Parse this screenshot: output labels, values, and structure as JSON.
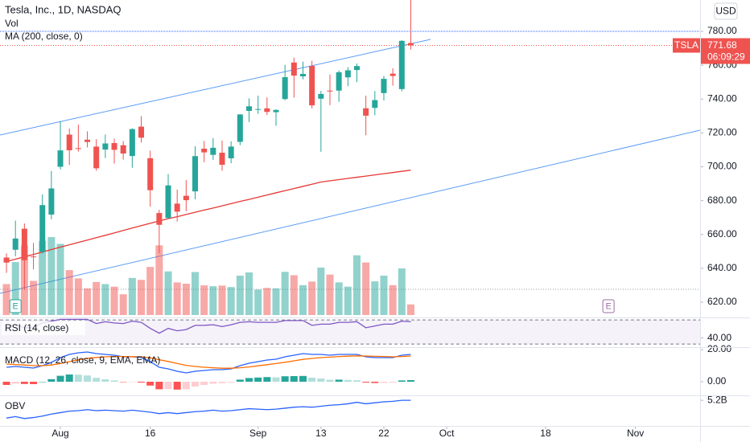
{
  "chart_data": [
    {
      "type": "candlestick",
      "title": "Tesla, Inc., 1D, NASDAQ",
      "currency": "USD",
      "x": [
        0,
        1,
        2,
        3,
        4,
        5,
        6,
        7,
        8,
        9,
        10,
        11,
        12,
        13,
        14,
        15,
        16,
        17,
        18,
        19,
        20,
        21,
        22,
        23,
        24,
        25,
        26,
        27,
        28,
        29,
        30,
        31,
        32,
        33,
        34,
        35,
        36,
        37,
        38,
        39,
        40,
        41,
        42,
        43,
        44,
        45
      ],
      "xlim": [
        -0.72,
        77.2
      ],
      "xticks": [
        {
          "value": 6,
          "label": "Aug"
        },
        16,
        {
          "value": 28,
          "label": "Sep"
        },
        {
          "value": 35,
          "label": "13"
        },
        {
          "value": 42,
          "label": "22"
        },
        {
          "value": 49,
          "label": "Oct"
        },
        {
          "value": 60,
          "label": "18"
        },
        {
          "value": 70,
          "label": "Nov"
        }
      ],
      "open": [
        646.36,
        650.97,
        663.4,
        647.0,
        649.79,
        671.76,
        700.0,
        719.0,
        711.0,
        716.0,
        711.9,
        710.17,
        713.99,
        712.71,
        706.34,
        723.71,
        705.07,
        672.66,
        669.75,
        678.21,
        682.85,
        685.44,
        710.68,
        707.03,
        708.31,
        705.0,
        714.72,
        733.0,
        734.08,
        734.5,
        732.25,
        740.0,
        761.58,
        753.41,
        759.6,
        740.21,
        745.0,
        745.0,
        752.83,
        757.15,
        734.56,
        734.79,
        743.53,
        755.0,
        745.89,
        773.12
      ],
      "high": [
        648.8,
        668.2,
        666.5,
        654.97,
        683.69,
        697.53,
        726.94,
        722.65,
        724.9,
        720.95,
        716.33,
        719.03,
        716.59,
        715.18,
        722.8,
        729.9,
        709.5,
        674.58,
        695.77,
        686.55,
        692.13,
        712.13,
        715.22,
        716.97,
        715.4,
        715.0,
        731.0,
        740.39,
        741.99,
        740.97,
        734.0,
        760.2,
        764.45,
        762.1,
        762.61,
        744.78,
        754.48,
        756.86,
        758.91,
        761.04,
        742.0,
        744.74,
        753.67,
        758.2,
        774.8,
        799.0
      ],
      "low": [
        637.3,
        647.11,
        627.24,
        639.4,
        648.8,
        669.0,
        698.4,
        701.01,
        708.93,
        711.41,
        697.63,
        705.13,
        701.88,
        704.21,
        699.4,
        714.34,
        676.4,
        648.84,
        669.35,
        667.59,
        673.7,
        680.75,
        702.64,
        704.0,
        697.62,
        702.1,
        712.73,
        726.44,
        731.27,
        730.54,
        724.2,
        739.26,
        740.77,
        751.63,
        734.52,
        708.85,
        736.4,
        738.36,
        747.61,
        750.0,
        718.62,
        730.44,
        739.12,
        747.92,
        744.56,
        769.31
      ],
      "close": [
        643.38,
        657.62,
        644.78,
        646.98,
        677.35,
        687.2,
        709.67,
        709.74,
        710.92,
        714.63,
        699.1,
        713.76,
        709.99,
        707.82,
        722.25,
        717.17,
        686.17,
        665.71,
        688.99,
        673.47,
        680.26,
        706.3,
        708.49,
        711.2,
        701.16,
        711.92,
        730.91,
        735.72,
        734.09,
        732.39,
        733.57,
        752.92,
        753.87,
        754.86,
        736.27,
        743.0,
        744.49,
        755.83,
        756.99,
        759.49,
        730.17,
        739.38,
        751.94,
        753.64,
        774.39,
        771.68
      ],
      "up_color": "#26a69a",
      "down_color": "#ef5350",
      "volume": {
        "name": "Vol",
        "values": [
          14.6,
          25.0,
          32.8,
          16.1,
          35.0,
          36.8,
          33.6,
          21.2,
          17.3,
          12.6,
          15.6,
          14.6,
          13.4,
          9.8,
          17.5,
          16.6,
          22.7,
          32.9,
          20.6,
          15.4,
          14.8,
          20.3,
          14.0,
          13.6,
          13.9,
          13.2,
          18.6,
          20.1,
          12.0,
          12.8,
          12.6,
          20.4,
          18.8,
          14.1,
          15.8,
          22.4,
          19.1,
          15.4,
          13.4,
          28.2,
          24.8,
          15.9,
          18.6,
          14.1,
          22.0,
          5.0
        ]
      },
      "series": [
        {
          "name": "MA (200, close, 0)",
          "color": "#e53935",
          "values": [
            644,
            645.4,
            646.8,
            648.2,
            649.6,
            651.1,
            652.5,
            653.9,
            655.3,
            656.7,
            658.1,
            659.5,
            660.9,
            662.4,
            663.8,
            665.2,
            666.6,
            668.0,
            669.3,
            670.5,
            671.8,
            673.1,
            674.4,
            675.6,
            676.9,
            678.2,
            679.5,
            680.7,
            682.0,
            683.3,
            684.6,
            685.9,
            687.1,
            688.4,
            689.7,
            691.0,
            691.7,
            692.4,
            693.1,
            693.8,
            694.5,
            695.2,
            695.9,
            696.6,
            697.3,
            698.0
          ]
        }
      ],
      "ylim": [
        610.98,
        798.52
      ],
      "yticks": [
        {
          "value": 620,
          "label": "620.00"
        },
        {
          "value": 640,
          "label": "640.00"
        },
        {
          "value": 660,
          "label": "660.00"
        },
        {
          "value": 680,
          "label": "680.00"
        },
        {
          "value": 700,
          "label": "700.00"
        },
        {
          "value": 720,
          "label": "720.00"
        },
        {
          "value": 740,
          "label": "740.00"
        },
        {
          "value": 760,
          "label": "760.00"
        },
        {
          "value": 780,
          "label": "780.00"
        }
      ],
      "last_price": {
        "symbol": "TSLA",
        "value": 771.68,
        "countdown": "06:09:29"
      },
      "events": [
        {
          "label": "E",
          "x": 1
        },
        {
          "label": "E",
          "x": 67
        }
      ]
    },
    {
      "type": "line",
      "title": "RSI (14, close)",
      "series": [
        {
          "color": "#7e57c2",
          "values": [
            58,
            63,
            57,
            57,
            65,
            68,
            71,
            71,
            71,
            71,
            64,
            67,
            65,
            64,
            68,
            66,
            56,
            48,
            56,
            52,
            54,
            61,
            61,
            62,
            59,
            62,
            66,
            67,
            66,
            66,
            66,
            69,
            69,
            69,
            61,
            63,
            63,
            66,
            66,
            67,
            57,
            60,
            63,
            63,
            68,
            67
          ]
        }
      ],
      "ylim": [
        24.8,
        72.8
      ],
      "yticks": [
        {
          "value": 40,
          "label": "40.00"
        }
      ],
      "band": [
        30,
        70
      ],
      "band_color": "#7e57c2"
    },
    {
      "type": "macd",
      "title": "MACD (12, 26, close, 9, EMA, EMA)",
      "histogram": [
        -2.0,
        -1.2,
        -1.4,
        -1.5,
        0.0,
        1.6,
        3.7,
        4.5,
        4.4,
        3.9,
        2.4,
        1.5,
        0.8,
        -0.2,
        -0.1,
        -0.5,
        -2.4,
        -4.7,
        -4.6,
        -4.9,
        -4.7,
        -3.0,
        -2.0,
        -1.2,
        -0.9,
        -0.4,
        1.3,
        2.3,
        2.6,
        2.9,
        2.7,
        3.4,
        3.5,
        3.6,
        2.5,
        2.0,
        1.2,
        1.3,
        1.1,
        0.9,
        -0.5,
        -0.8,
        -0.7,
        -0.5,
        0.8,
        1.0
      ],
      "series": [
        {
          "color": "#2962ff",
          "values": [
            9,
            9.5,
            9,
            8.5,
            10,
            12,
            15,
            17,
            18,
            18.5,
            17.5,
            17,
            16.5,
            15.5,
            15.5,
            15,
            12.5,
            9,
            8,
            6.5,
            5.5,
            6.5,
            7,
            7.5,
            7.5,
            8,
            10,
            11.5,
            12.5,
            13.5,
            14,
            15.5,
            16.5,
            17.5,
            17,
            17,
            16.5,
            17,
            17,
            17,
            15.5,
            15,
            15,
            15,
            16.5,
            17
          ]
        },
        {
          "color": "#ff6d00",
          "values": [
            11.0,
            10.7,
            10.4,
            10.0,
            10.0,
            10.4,
            11.3,
            12.5,
            13.6,
            14.6,
            15.1,
            15.5,
            15.7,
            15.7,
            15.6,
            15.5,
            14.9,
            13.7,
            12.6,
            11.4,
            10.2,
            9.5,
            9.0,
            8.7,
            8.4,
            8.4,
            8.7,
            9.2,
            9.9,
            10.6,
            11.3,
            12.1,
            13.0,
            13.9,
            14.5,
            15.0,
            15.3,
            15.7,
            15.9,
            16.1,
            16.0,
            15.8,
            15.7,
            15.5,
            15.7,
            16.0
          ]
        }
      ],
      "ylim": [
        -8.5,
        21.5
      ],
      "yticks": [
        {
          "value": 0,
          "label": "0.00"
        },
        {
          "value": 20,
          "label": "20.00"
        }
      ]
    },
    {
      "type": "line",
      "title": "OBV",
      "series": [
        {
          "color": "#2962ff",
          "values": [
            4.84,
            4.87,
            4.83,
            4.85,
            4.88,
            4.92,
            4.95,
            4.98,
            4.99,
            5.01,
            4.99,
            5.0,
            4.99,
            4.98,
            5.0,
            4.98,
            4.96,
            4.93,
            4.95,
            4.93,
            4.95,
            4.97,
            4.98,
            5.0,
            4.98,
            4.99,
            5.01,
            5.03,
            5.02,
            5.01,
            5.02,
            5.04,
            5.06,
            5.07,
            5.06,
            5.08,
            5.1,
            5.11,
            5.13,
            5.16,
            5.13,
            5.15,
            5.17,
            5.18,
            5.2,
            5.2
          ]
        }
      ],
      "ylim": [
        4.68,
        5.3
      ],
      "yticks": [
        {
          "value": 5.2,
          "label": "5.2B"
        }
      ]
    }
  ]
}
